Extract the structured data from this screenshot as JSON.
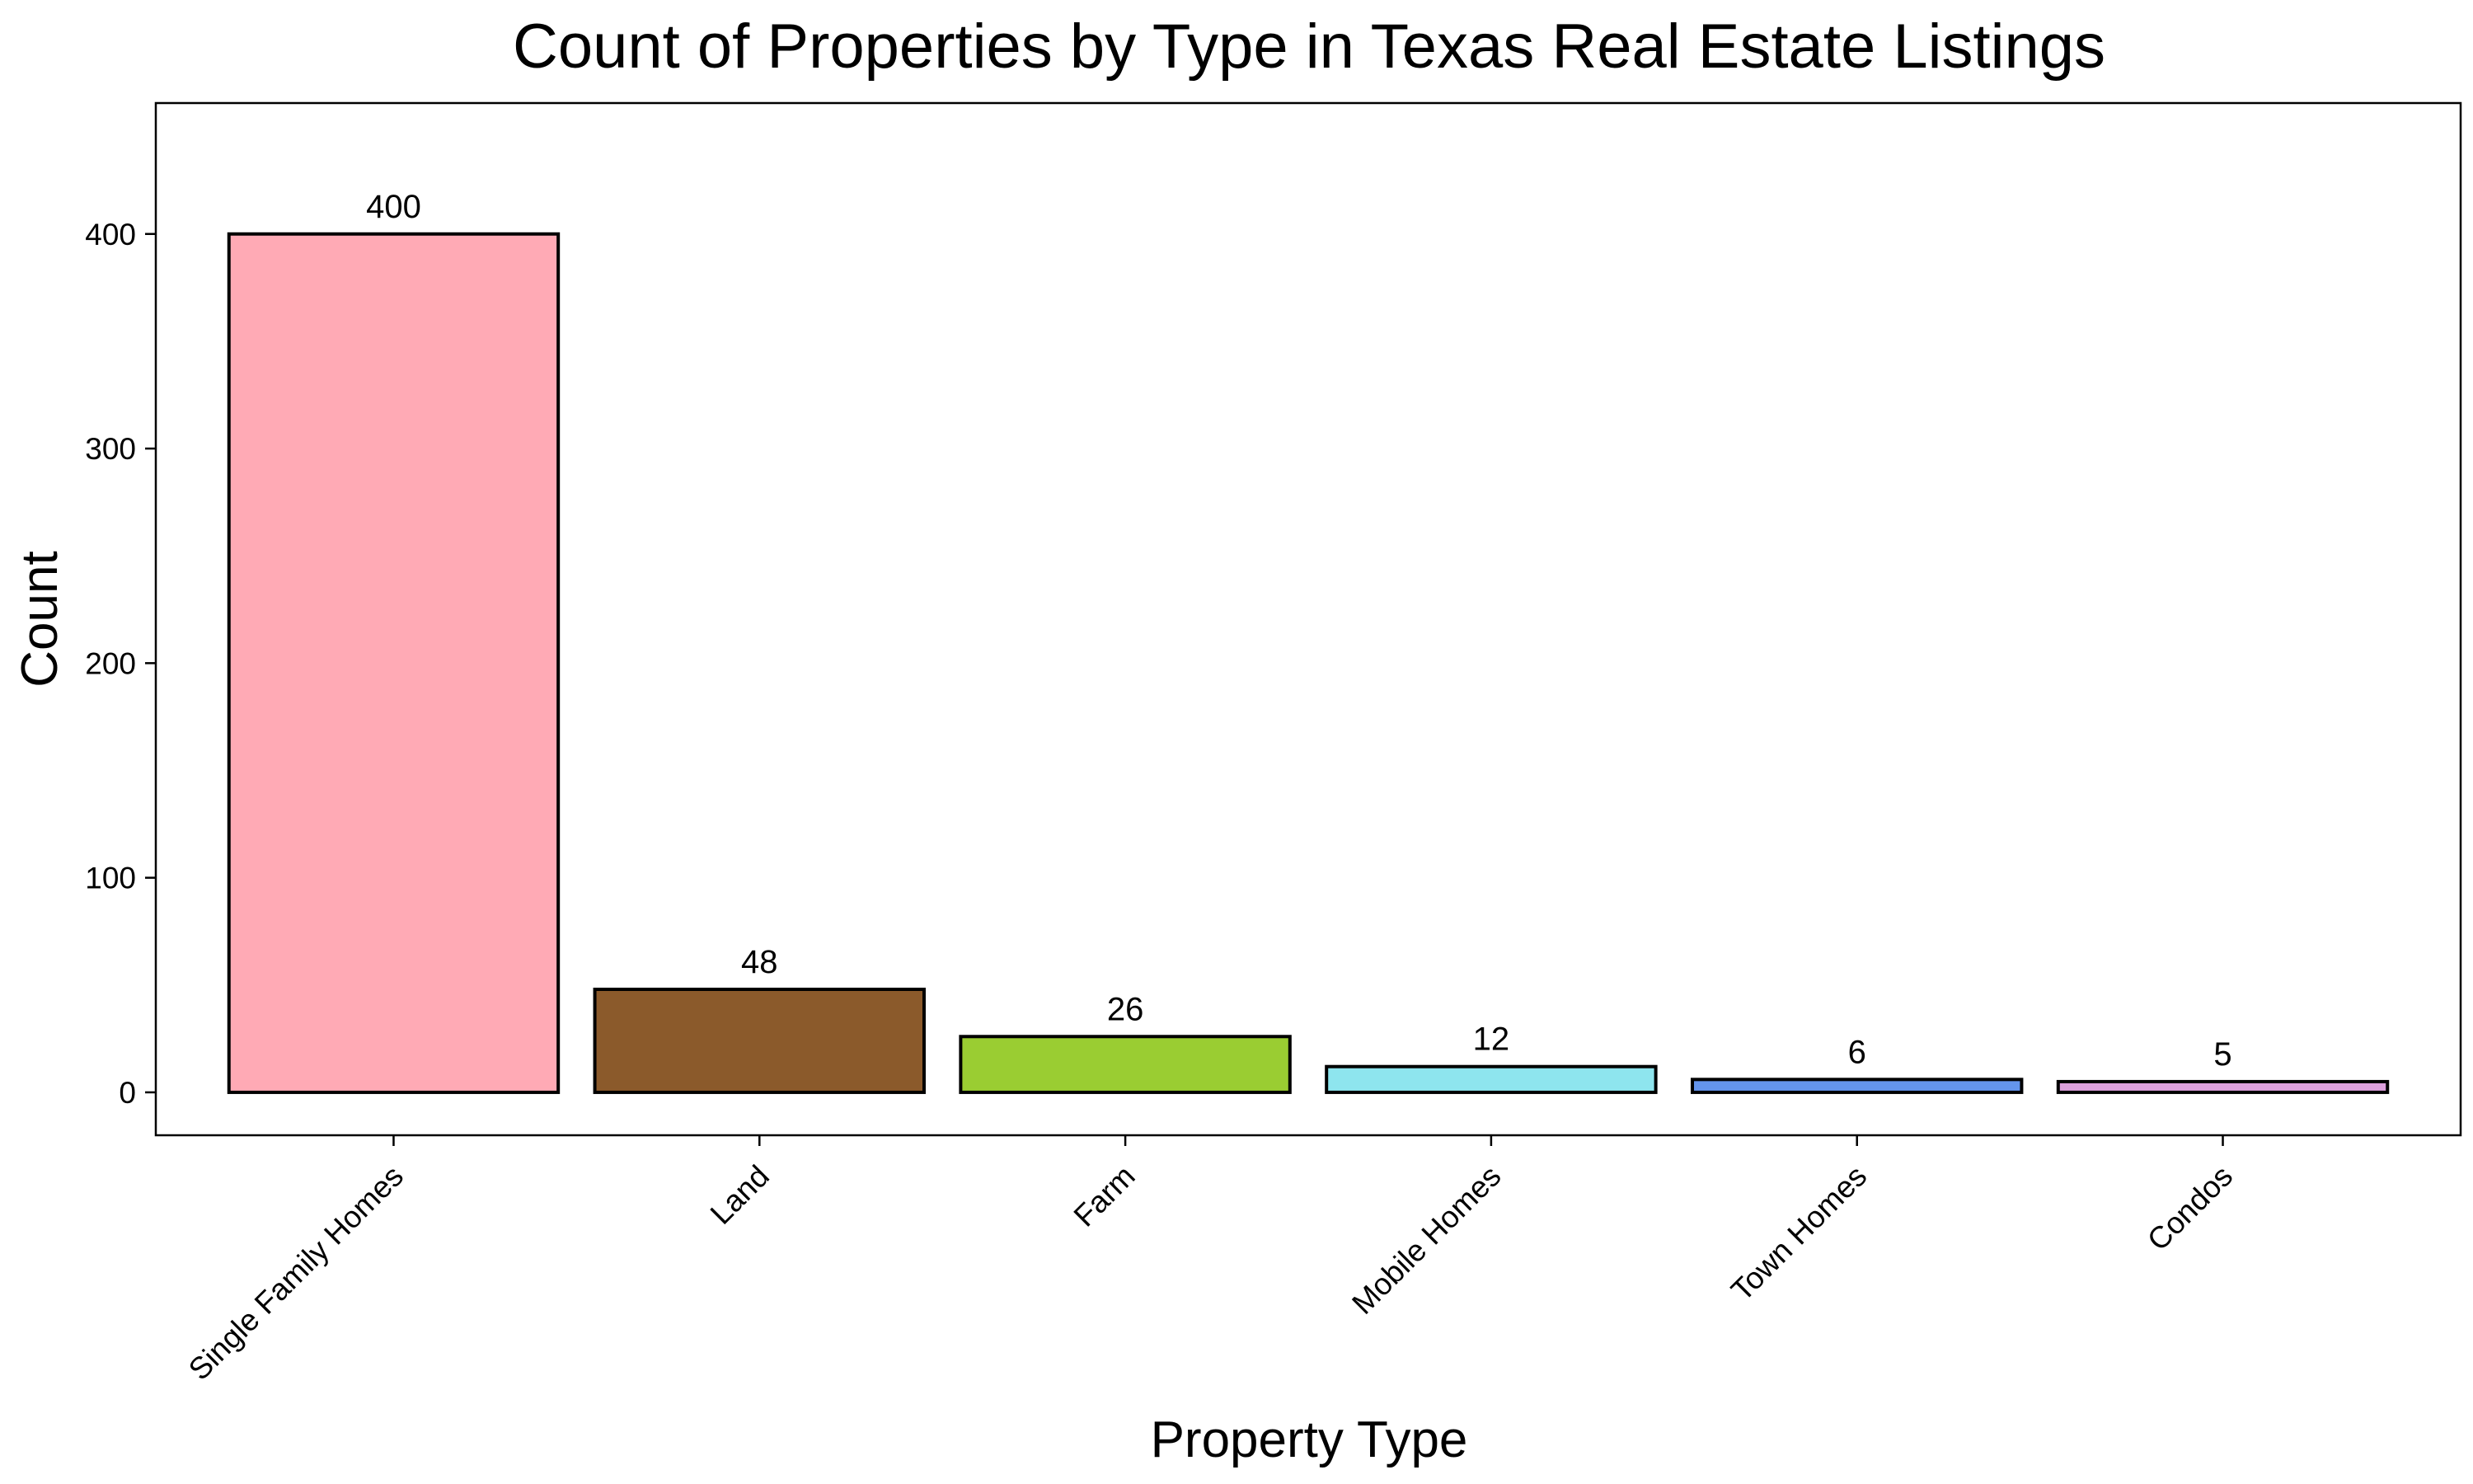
{
  "chart_data": {
    "type": "bar",
    "title": "Count of Properties by Type in Texas Real Estate Listings",
    "xlabel": "Property Type",
    "ylabel": "Count",
    "categories": [
      "Single Family Homes",
      "Land",
      "Farm",
      "Mobile Homes",
      "Town Homes",
      "Condos"
    ],
    "values": [
      400,
      48,
      26,
      12,
      6,
      5
    ],
    "data_labels": [
      "400",
      "48",
      "26",
      "12",
      "6",
      "5"
    ],
    "colors": [
      "#FFAAB5",
      "#8B5A2B",
      "#9ACD32",
      "#8EE5EE",
      "#6495ED",
      "#DDA0DD"
    ],
    "yticks": [
      0,
      100,
      200,
      300,
      400
    ],
    "ytick_labels": [
      "0",
      "100",
      "200",
      "300",
      "400"
    ],
    "ylim": [
      -20,
      461
    ],
    "grid": false,
    "legend": "none",
    "x_tick_rotation_deg": 45
  }
}
